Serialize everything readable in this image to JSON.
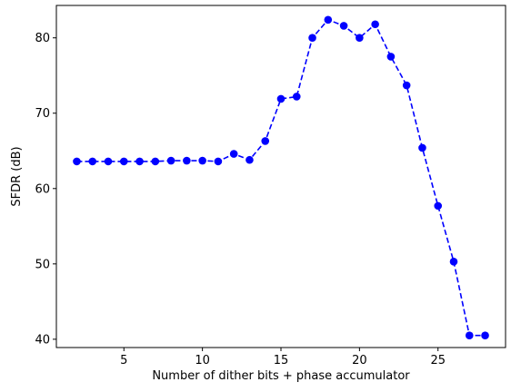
{
  "chart_data": {
    "type": "line",
    "title": "",
    "xlabel": "Number of dither bits + phase accumulator",
    "ylabel": "SFDR (dB)",
    "xlim": [
      0.7,
      29.3
    ],
    "ylim": [
      38.9,
      84.3
    ],
    "xticks": [
      5,
      10,
      15,
      20,
      25
    ],
    "yticks": [
      40,
      50,
      60,
      70,
      80
    ],
    "grid": false,
    "legend": "none",
    "series": [
      {
        "color": "#0000ff",
        "line_style": "dashed",
        "marker": "circle",
        "x": [
          2,
          3,
          4,
          5,
          6,
          7,
          8,
          9,
          10,
          11,
          12,
          13,
          14,
          15,
          16,
          17,
          18,
          19,
          20,
          21,
          22,
          23,
          24,
          25,
          26,
          27,
          28
        ],
        "y": [
          63.6,
          63.6,
          63.6,
          63.6,
          63.6,
          63.6,
          63.7,
          63.7,
          63.7,
          63.6,
          64.6,
          63.8,
          66.3,
          71.9,
          72.2,
          80.0,
          82.4,
          81.6,
          80.0,
          81.8,
          77.5,
          73.7,
          65.4,
          57.7,
          50.3,
          40.5,
          40.5
        ]
      }
    ]
  }
}
